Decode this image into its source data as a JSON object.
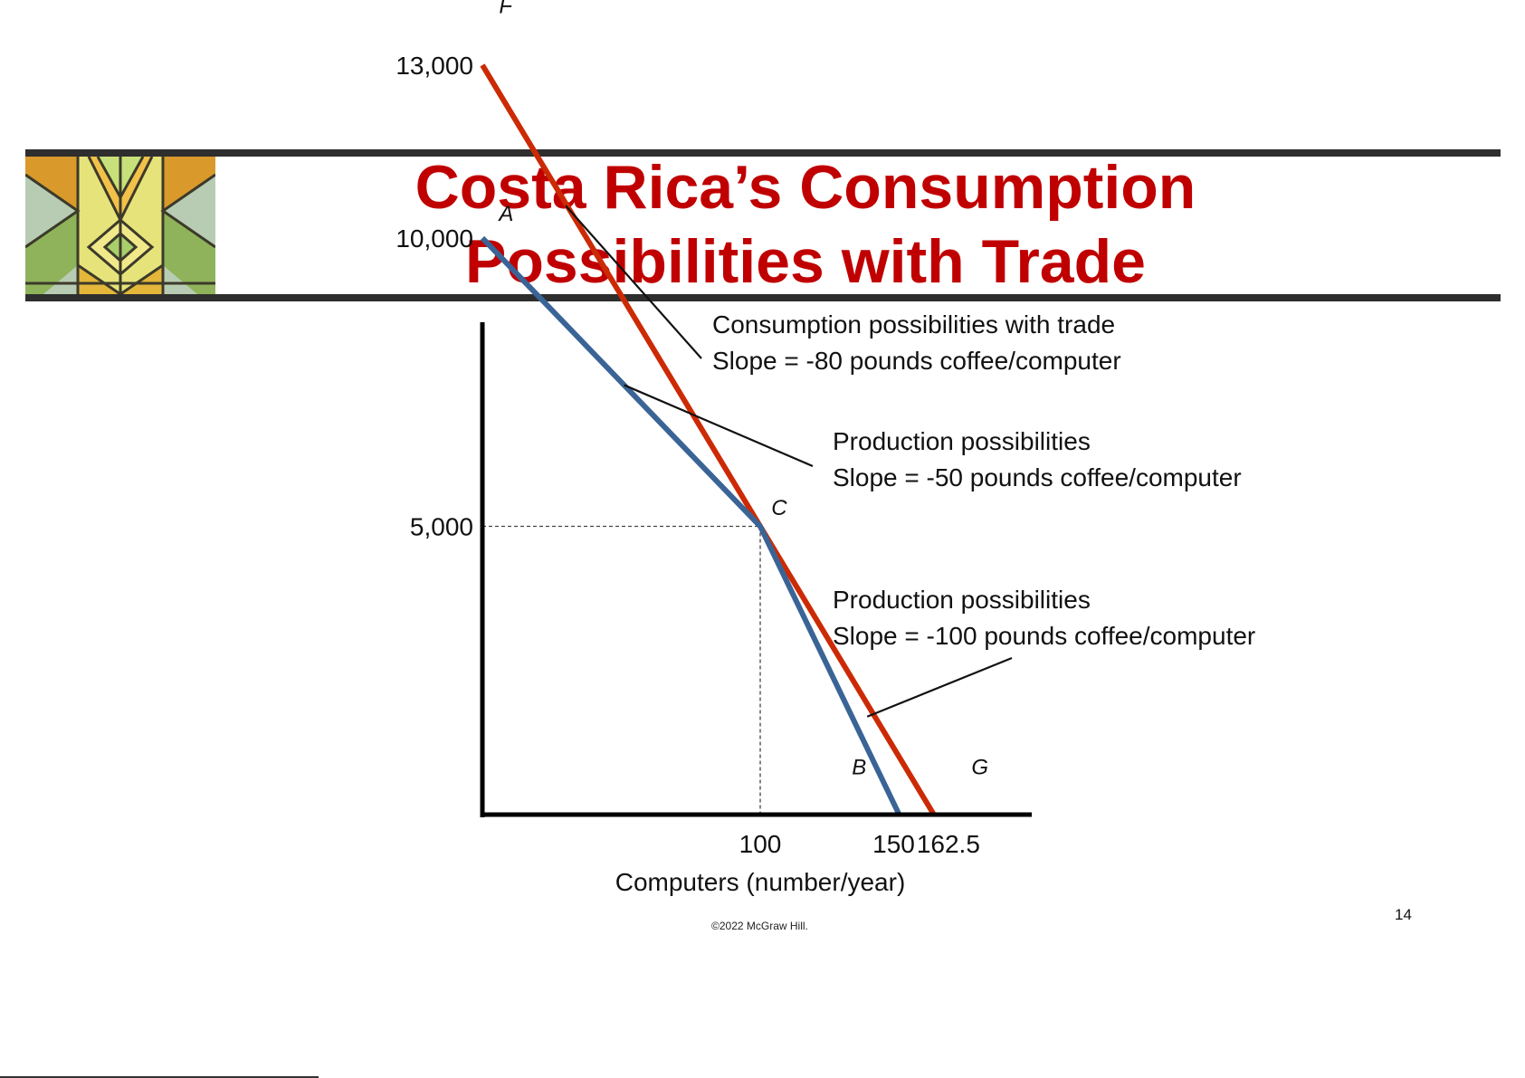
{
  "slide": {
    "title_line1": "Costa Rica’s Consumption",
    "title_line2": "Possibilities with Trade",
    "copyright": "©2022 McGraw Hill.",
    "page_number": "14"
  },
  "colors": {
    "title": "#c00000",
    "trade_line": "#cc2a05",
    "production_line": "#3a6496",
    "axis": "#000000"
  },
  "chart_data": {
    "type": "line",
    "xlabel": "Computers (number/year)",
    "ylabel": "",
    "xlim": [
      0,
      200
    ],
    "ylim": [
      0,
      13800
    ],
    "x_ticks": [
      {
        "value": 100,
        "label": "100"
      },
      {
        "value": 150,
        "label": "150"
      },
      {
        "value": 162.5,
        "label": "162.5"
      }
    ],
    "y_ticks": [
      {
        "value": 13000,
        "label": "13,000"
      },
      {
        "value": 10000,
        "label": "10,000"
      },
      {
        "value": 5000,
        "label": "5,000"
      }
    ],
    "series": [
      {
        "key": "trade",
        "color": "#cc2a05",
        "points": [
          [
            0,
            13000
          ],
          [
            162.5,
            0
          ]
        ]
      },
      {
        "key": "production",
        "color": "#3a6496",
        "points": [
          [
            0,
            10000
          ],
          [
            100,
            5000
          ],
          [
            150,
            0
          ]
        ]
      }
    ],
    "reference_point": {
      "x": 100,
      "y": 5000
    },
    "point_labels": [
      {
        "text": "F",
        "x": 6,
        "y": 13900
      },
      {
        "text": "A",
        "x": 6,
        "y": 10300
      },
      {
        "text": "C",
        "x": 104,
        "y": 5200
      },
      {
        "text": "B",
        "x": 133,
        "y": 700
      },
      {
        "text": "G",
        "x": 176,
        "y": 700
      }
    ],
    "annotations": [
      {
        "lines": [
          "Consumption possibilities with trade",
          "Slope = -80 pounds coffee/computer"
        ],
        "target": {
          "x": 30,
          "y": 10560
        }
      },
      {
        "lines": [
          "Production possibilities",
          "Slope = -50 pounds coffee/computer"
        ],
        "target": {
          "x": 51,
          "y": 7450
        }
      },
      {
        "lines": [
          "Production possibilities",
          "Slope = -100 pounds coffee/computer"
        ],
        "target": {
          "x": 138.5,
          "y": 1700
        }
      }
    ]
  }
}
